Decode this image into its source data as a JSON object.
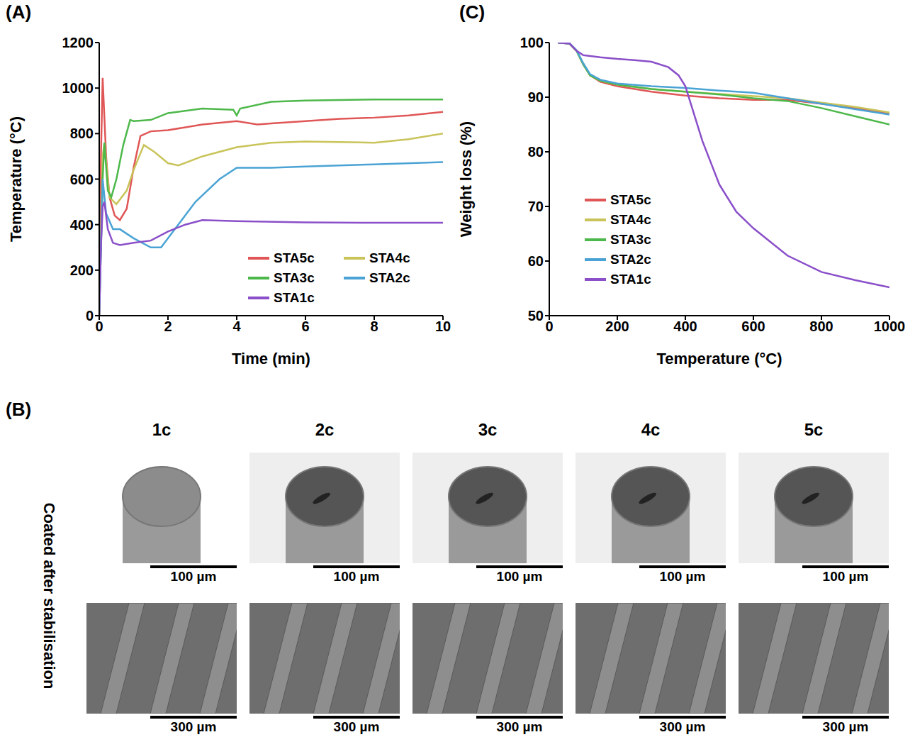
{
  "chart_data": [
    {
      "type": "line",
      "title": "(A)",
      "x_label": "Time (min)",
      "y_label": "Temperature (°C)",
      "xlim": [
        0,
        10
      ],
      "xticks": [
        0,
        2,
        4,
        6,
        8,
        10
      ],
      "ylim": [
        0,
        1200
      ],
      "yticks": [
        0,
        200,
        400,
        600,
        800,
        1000,
        1200
      ],
      "grid": false,
      "legend": "lower right",
      "series": [
        {
          "name": "STA5c",
          "color": "#e05656",
          "x": [
            0,
            0.05,
            0.1,
            0.2,
            0.3,
            0.45,
            0.6,
            0.8,
            1.0,
            1.2,
            1.5,
            2,
            3,
            4,
            4.6,
            5,
            6,
            7,
            8,
            9,
            10
          ],
          "values": [
            0,
            700,
            1045,
            700,
            520,
            440,
            420,
            470,
            650,
            790,
            810,
            815,
            840,
            855,
            840,
            845,
            855,
            865,
            870,
            880,
            895
          ]
        },
        {
          "name": "STA4c",
          "color": "#c9c45a",
          "x": [
            0,
            0.1,
            0.15,
            0.3,
            0.5,
            0.8,
            1.0,
            1.3,
            1.6,
            2,
            2.3,
            3,
            4,
            5,
            6,
            8,
            9,
            10
          ],
          "values": [
            0,
            700,
            760,
            520,
            490,
            550,
            640,
            750,
            720,
            670,
            660,
            700,
            740,
            760,
            765,
            760,
            775,
            800
          ]
        },
        {
          "name": "STA3c",
          "color": "#4db84a",
          "x": [
            0,
            0.1,
            0.15,
            0.25,
            0.35,
            0.5,
            0.7,
            0.9,
            1.0,
            1.5,
            2,
            3,
            3.9,
            4,
            4.1,
            5,
            6,
            8,
            10
          ],
          "values": [
            0,
            600,
            760,
            550,
            520,
            600,
            750,
            860,
            855,
            860,
            890,
            910,
            905,
            880,
            910,
            940,
            945,
            950,
            950
          ]
        },
        {
          "name": "STA2c",
          "color": "#4aa3d4",
          "x": [
            0,
            0.1,
            0.2,
            0.4,
            0.6,
            1.0,
            1.5,
            1.8,
            2.2,
            2.8,
            3.5,
            4,
            5,
            6,
            8,
            10
          ],
          "values": [
            0,
            600,
            450,
            380,
            380,
            340,
            300,
            300,
            380,
            500,
            600,
            650,
            650,
            655,
            665,
            675
          ]
        },
        {
          "name": "STA1c",
          "color": "#8a4fc9",
          "x": [
            0,
            0.05,
            0.1,
            0.15,
            0.25,
            0.4,
            0.6,
            1,
            1.5,
            2,
            2.5,
            3,
            4,
            6,
            8,
            10
          ],
          "values": [
            0,
            300,
            480,
            500,
            380,
            320,
            310,
            320,
            330,
            370,
            400,
            420,
            415,
            410,
            408,
            408
          ]
        }
      ]
    },
    {
      "type": "line",
      "title": "(C)",
      "x_label": "Temperature (°C)",
      "y_label": "Weight loss (%)",
      "xlim": [
        0,
        1000
      ],
      "xticks": [
        0,
        200,
        400,
        600,
        800,
        1000
      ],
      "ylim": [
        50,
        100
      ],
      "yticks": [
        50,
        60,
        70,
        80,
        90,
        100
      ],
      "grid": false,
      "legend": "center left",
      "series": [
        {
          "name": "STA5c",
          "color": "#e05656",
          "x": [
            25,
            60,
            80,
            100,
            120,
            150,
            200,
            300,
            400,
            500,
            600,
            700,
            800,
            900,
            1000
          ],
          "values": [
            100,
            99.8,
            98.5,
            96,
            94,
            92.8,
            92,
            91,
            90.3,
            89.8,
            89.5,
            89.5,
            88.8,
            88,
            87
          ]
        },
        {
          "name": "STA4c",
          "color": "#c9c45a",
          "x": [
            25,
            60,
            80,
            100,
            120,
            150,
            200,
            300,
            400,
            500,
            600,
            700,
            800,
            900,
            1000
          ],
          "values": [
            100,
            99.8,
            98.5,
            96,
            94,
            93,
            92.3,
            91.5,
            91,
            90.6,
            90.2,
            89.8,
            89,
            88.2,
            87.2
          ]
        },
        {
          "name": "STA3c",
          "color": "#4db84a",
          "x": [
            25,
            60,
            80,
            100,
            120,
            150,
            200,
            300,
            400,
            500,
            600,
            700,
            800,
            900,
            1000
          ],
          "values": [
            100,
            99.8,
            98.5,
            96,
            94,
            93,
            92.3,
            91.5,
            91,
            90.5,
            89.8,
            89.3,
            88,
            86.5,
            85
          ]
        },
        {
          "name": "STA2c",
          "color": "#4aa3d4",
          "x": [
            25,
            60,
            80,
            100,
            120,
            150,
            200,
            300,
            400,
            500,
            600,
            700,
            800,
            900,
            1000
          ],
          "values": [
            100,
            99.8,
            98.6,
            96.2,
            94.2,
            93.2,
            92.5,
            92,
            91.7,
            91.2,
            90.8,
            89.8,
            88.8,
            87.8,
            86.8
          ]
        },
        {
          "name": "STA1c",
          "color": "#8a4fc9",
          "x": [
            25,
            60,
            80,
            100,
            150,
            200,
            250,
            300,
            350,
            380,
            400,
            420,
            450,
            500,
            550,
            600,
            700,
            800,
            900,
            1000
          ],
          "values": [
            100,
            99.8,
            98.5,
            97.7,
            97.3,
            97,
            96.8,
            96.5,
            95.5,
            94,
            92,
            88,
            82,
            74,
            69,
            66,
            61,
            58,
            56.5,
            55.2
          ]
        }
      ]
    }
  ],
  "micrographs": {
    "title": "(B)",
    "row_label": "Coated after stabilisation",
    "columns": [
      "1c",
      "2c",
      "3c",
      "4c",
      "5c"
    ],
    "scale_bars": [
      "100 µm",
      "300 µm"
    ]
  }
}
